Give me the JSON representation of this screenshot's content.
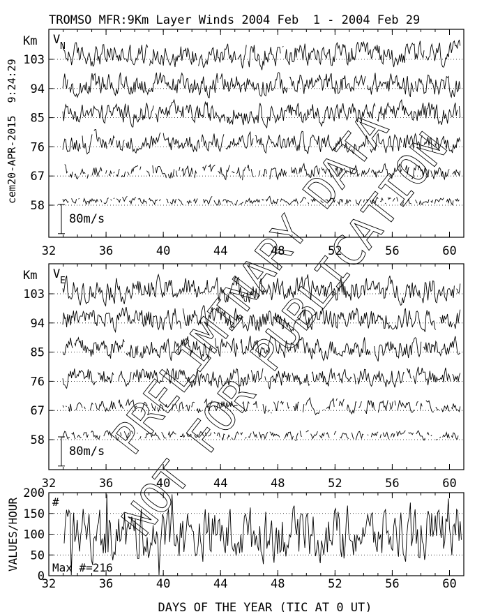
{
  "title": "TROMSO MFR:9Km Layer Winds 2004 Feb  1 - 2004 Feb 29",
  "side_label": "cem20-APR-2015  9:24:29",
  "chart_data": [
    {
      "type": "line",
      "panel": "v-north",
      "component_label": "V",
      "component_sub": "N",
      "ylabel": "Km",
      "y_ticks": [
        "103",
        "94",
        "85",
        "76",
        "67",
        "58"
      ],
      "heights_km": [
        103,
        94,
        85,
        76,
        67,
        58
      ],
      "xlim": [
        32,
        61
      ],
      "x_ticks": [
        "32",
        "36",
        "40",
        "44",
        "48",
        "52",
        "56",
        "60"
      ],
      "scale_label": "80m/s",
      "scale_ms": 80,
      "grid": "dotted at each height",
      "series_amplitude_ms": [
        45,
        42,
        40,
        36,
        26,
        14
      ]
    },
    {
      "type": "line",
      "panel": "v-east",
      "component_label": "V",
      "component_sub": "E",
      "ylabel": "Km",
      "y_ticks": [
        "103",
        "94",
        "85",
        "76",
        "67",
        "58"
      ],
      "heights_km": [
        103,
        94,
        85,
        76,
        67,
        58
      ],
      "xlim": [
        32,
        61
      ],
      "x_ticks": [
        "32",
        "36",
        "40",
        "44",
        "48",
        "52",
        "56",
        "60"
      ],
      "scale_label": "80m/s",
      "scale_ms": 80,
      "grid": "dotted at each height",
      "series_amplitude_ms": [
        46,
        42,
        40,
        36,
        26,
        16
      ]
    },
    {
      "type": "line",
      "panel": "values-per-hour",
      "ylabel": "VALUES/HOUR",
      "ylim": [
        0,
        200
      ],
      "y_ticks": [
        "200",
        "150",
        "100",
        "50",
        "0"
      ],
      "xlim": [
        32,
        61
      ],
      "x_ticks": [
        "32",
        "36",
        "40",
        "44",
        "48",
        "52",
        "56",
        "60"
      ],
      "xlabel": "DAYS OF THE YEAR (TIC AT 0 UT)",
      "count_symbol": "#",
      "max_label": "Max #=216",
      "max_value": 216,
      "mean_value": 100,
      "grid": "dotted at 50, 100, 150"
    }
  ],
  "watermark": {
    "line1": "PRELIMINARY DATA",
    "line2": "NOT FOR PUBLICATION"
  }
}
